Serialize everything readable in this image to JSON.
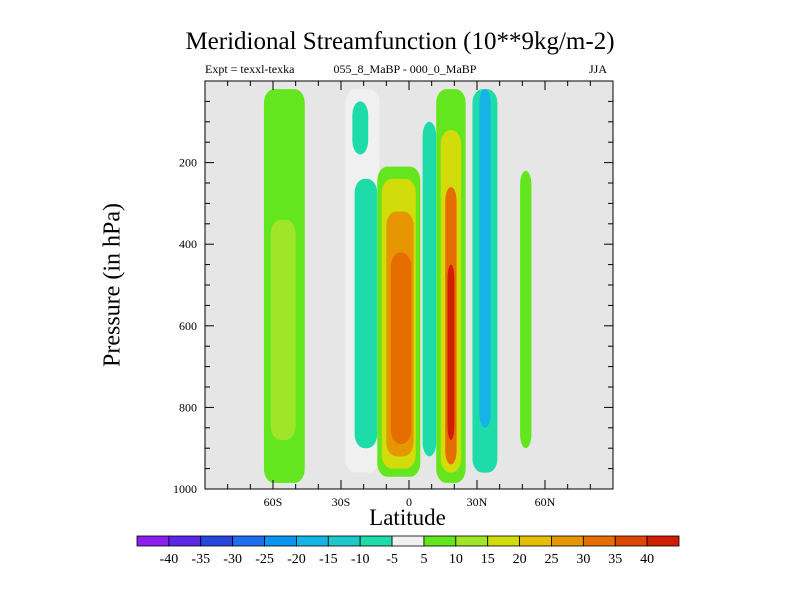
{
  "chart_data": {
    "type": "contour",
    "title": "Meridional Streamfunction (10**9kg/m-2)",
    "left_string": "Expt = texxl-texka",
    "center_string": "055_8_MaBP - 000_0_MaBP",
    "right_string": "JJA",
    "xlabel": "Latitude",
    "ylabel": "Pressure (in hPa)",
    "xlim": [
      -90,
      90
    ],
    "ylim": [
      1000,
      0
    ],
    "x_ticks": [
      {
        "value": -60,
        "label": "60S"
      },
      {
        "value": -30,
        "label": "30S"
      },
      {
        "value": 0,
        "label": "0"
      },
      {
        "value": 30,
        "label": "30N"
      },
      {
        "value": 60,
        "label": "60N"
      }
    ],
    "y_ticks": [
      {
        "value": 200,
        "label": "200"
      },
      {
        "value": 400,
        "label": "400"
      },
      {
        "value": 600,
        "label": "600"
      },
      {
        "value": 800,
        "label": "800"
      },
      {
        "value": 1000,
        "label": "1000"
      }
    ],
    "colorbar": {
      "levels": [
        -40,
        -35,
        -30,
        -25,
        -20,
        -15,
        -10,
        -5,
        5,
        10,
        15,
        20,
        25,
        30,
        35,
        40
      ],
      "labels": [
        "-40",
        "-35",
        "-30",
        "-25",
        "-20",
        "-15",
        "-10",
        "-5",
        "5",
        "10",
        "15",
        "20",
        "25",
        "30",
        "35",
        "40"
      ],
      "colors": [
        "#8c1ef0",
        "#5a28e6",
        "#2846dc",
        "#1e6ef0",
        "#0a96f0",
        "#14b4e6",
        "#1ec8c8",
        "#1edcaa",
        "#f0f0f0",
        "#64e61e",
        "#a0e628",
        "#d2dc0a",
        "#e6be00",
        "#e69600",
        "#e66e00",
        "#dc4600",
        "#d21e00"
      ]
    },
    "regions": [
      {
        "label": "weak positive cell 60S",
        "level": 5,
        "lat": [
          -64,
          -46
        ],
        "p": [
          20,
          985
        ]
      },
      {
        "label": "positive 10 core 60S",
        "level": 10,
        "lat": [
          -61,
          -50
        ],
        "p": [
          340,
          880
        ]
      },
      {
        "label": "weak negative 30S",
        "level": -5,
        "lat": [
          -28,
          -13
        ],
        "p": [
          20,
          960
        ]
      },
      {
        "label": "negative -10 upper 30S",
        "level": -10,
        "lat": [
          -25,
          -18
        ],
        "p": [
          50,
          180
        ]
      },
      {
        "label": "negative -10 30S mid",
        "level": -10,
        "lat": [
          -24,
          -14
        ],
        "p": [
          240,
          900
        ]
      },
      {
        "label": "equatorial positive cell",
        "level": 5,
        "lat": [
          -14,
          5
        ],
        "p": [
          210,
          970
        ]
      },
      {
        "label": "equatorial positive 15",
        "level": 15,
        "lat": [
          -12,
          3
        ],
        "p": [
          240,
          950
        ]
      },
      {
        "label": "equatorial positive 25",
        "level": 25,
        "lat": [
          -10,
          2
        ],
        "p": [
          320,
          920
        ]
      },
      {
        "label": "equatorial positive 30",
        "level": 30,
        "lat": [
          -8,
          1
        ],
        "p": [
          420,
          890
        ]
      },
      {
        "label": "northern positive cell",
        "level": 5,
        "lat": [
          12,
          25
        ],
        "p": [
          20,
          985
        ]
      },
      {
        "label": "northern positive 15",
        "level": 15,
        "lat": [
          14,
          23
        ],
        "p": [
          120,
          960
        ]
      },
      {
        "label": "northern positive 30",
        "level": 30,
        "lat": [
          16,
          21
        ],
        "p": [
          260,
          940
        ]
      },
      {
        "label": "northern positive 40",
        "level": 40,
        "lat": [
          17,
          20
        ],
        "p": [
          450,
          880
        ]
      },
      {
        "label": "negative band 5N",
        "level": -10,
        "lat": [
          6,
          12
        ],
        "p": [
          100,
          920
        ]
      },
      {
        "label": "negative band 35N",
        "level": -10,
        "lat": [
          28,
          39
        ],
        "p": [
          20,
          960
        ]
      },
      {
        "label": "negative core 35N",
        "level": -20,
        "lat": [
          31,
          36
        ],
        "p": [
          20,
          850
        ]
      },
      {
        "label": "weak positive 55N",
        "level": 5,
        "lat": [
          49,
          54
        ],
        "p": [
          220,
          900
        ]
      }
    ]
  }
}
